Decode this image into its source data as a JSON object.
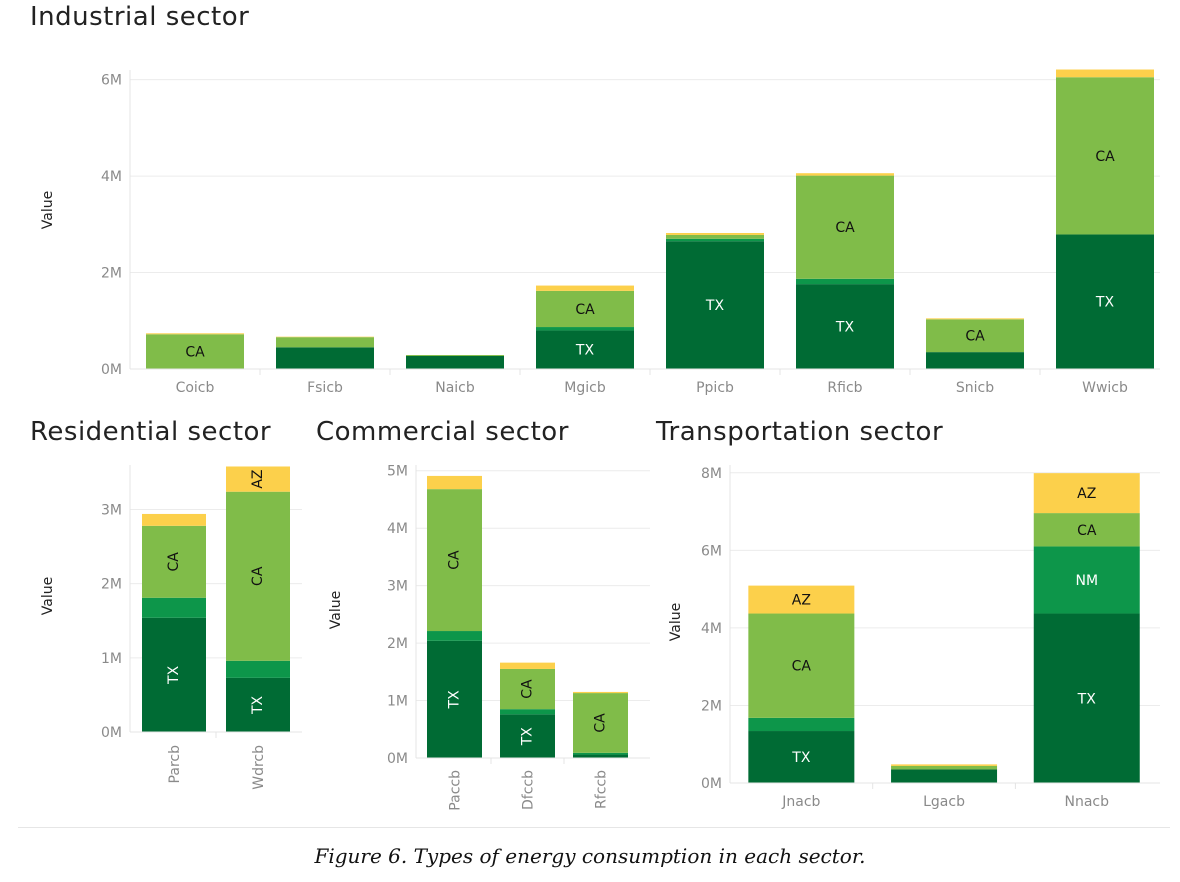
{
  "colors": {
    "TX": "#006b34",
    "NM": "#0d964a",
    "CA": "#80bc49",
    "AZ": "#fcd04b",
    "grid": "#ececec",
    "axis": "#e4e4e4"
  },
  "caption": "Figure 6. Types of energy consumption in each sector.",
  "chart_data": [
    {
      "type": "bar",
      "stacked": true,
      "title": "Industrial sector",
      "ylabel": "Value",
      "ylim": [
        0,
        6200000
      ],
      "y_ticks": [
        {
          "value": 0,
          "label": "0M"
        },
        {
          "value": 2000000,
          "label": "2M"
        },
        {
          "value": 4000000,
          "label": "4M"
        },
        {
          "value": 6000000,
          "label": "6M"
        }
      ],
      "categories": [
        "Coicb",
        "Fsicb",
        "Naicb",
        "Mgicb",
        "Ppicb",
        "Rficb",
        "Snicb",
        "Wwicb"
      ],
      "category_label_rotation": 0,
      "grid": true,
      "series": [
        {
          "key": "TX",
          "values": [
            0,
            450000,
            270000,
            800000,
            2650000,
            1760000,
            350000,
            2790000
          ]
        },
        {
          "key": "NM",
          "values": [
            0,
            0,
            0,
            70000,
            50000,
            110000,
            0,
            0
          ]
        },
        {
          "key": "CA",
          "values": [
            720000,
            210000,
            20000,
            750000,
            80000,
            2140000,
            680000,
            3260000
          ]
        },
        {
          "key": "AZ",
          "values": [
            20000,
            10000,
            0,
            110000,
            40000,
            50000,
            20000,
            160000
          ]
        }
      ],
      "segment_labels": [
        {
          "category": "Coicb",
          "key": "CA",
          "text": "CA"
        },
        {
          "category": "Mgicb",
          "key": "CA",
          "text": "CA"
        },
        {
          "category": "Mgicb",
          "key": "TX",
          "text": "TX"
        },
        {
          "category": "Ppicb",
          "key": "TX",
          "text": "TX"
        },
        {
          "category": "Rficb",
          "key": "CA",
          "text": "CA"
        },
        {
          "category": "Rficb",
          "key": "TX",
          "text": "TX"
        },
        {
          "category": "Snicb",
          "key": "CA",
          "text": "CA"
        },
        {
          "category": "Wwicb",
          "key": "CA",
          "text": "CA"
        },
        {
          "category": "Wwicb",
          "key": "TX",
          "text": "TX"
        }
      ]
    },
    {
      "type": "bar",
      "stacked": true,
      "title": "Residential sector",
      "ylabel": "Value",
      "ylim": [
        0,
        3600000
      ],
      "y_ticks": [
        {
          "value": 0,
          "label": "0M"
        },
        {
          "value": 1000000,
          "label": "1M"
        },
        {
          "value": 2000000,
          "label": "2M"
        },
        {
          "value": 3000000,
          "label": "3M"
        }
      ],
      "categories": [
        "Parcb",
        "Wdrcb"
      ],
      "category_label_rotation": -90,
      "grid": true,
      "series": [
        {
          "key": "TX",
          "values": [
            1540000,
            730000
          ]
        },
        {
          "key": "NM",
          "values": [
            270000,
            230000
          ]
        },
        {
          "key": "CA",
          "values": [
            970000,
            2280000
          ]
        },
        {
          "key": "AZ",
          "values": [
            160000,
            340000
          ]
        }
      ],
      "segment_labels": [
        {
          "category": "Parcb",
          "key": "TX",
          "text": "TX",
          "rotate": -90
        },
        {
          "category": "Parcb",
          "key": "CA",
          "text": "CA",
          "rotate": -90
        },
        {
          "category": "Wdrcb",
          "key": "TX",
          "text": "TX",
          "rotate": -90
        },
        {
          "category": "Wdrcb",
          "key": "CA",
          "text": "CA",
          "rotate": -90
        },
        {
          "category": "Wdrcb",
          "key": "AZ",
          "text": "AZ",
          "rotate": -90
        }
      ]
    },
    {
      "type": "bar",
      "stacked": true,
      "title": "Commercial sector",
      "ylabel": "Value",
      "ylim": [
        0,
        5100000
      ],
      "y_ticks": [
        {
          "value": 0,
          "label": "0M"
        },
        {
          "value": 1000000,
          "label": "1M"
        },
        {
          "value": 2000000,
          "label": "2M"
        },
        {
          "value": 3000000,
          "label": "3M"
        },
        {
          "value": 4000000,
          "label": "4M"
        },
        {
          "value": 5000000,
          "label": "5M"
        }
      ],
      "categories": [
        "Paccb",
        "Dfccb",
        "Rfccb"
      ],
      "category_label_rotation": -90,
      "grid": true,
      "series": [
        {
          "key": "TX",
          "values": [
            2040000,
            760000,
            60000
          ]
        },
        {
          "key": "NM",
          "values": [
            170000,
            90000,
            30000
          ]
        },
        {
          "key": "CA",
          "values": [
            2470000,
            700000,
            1040000
          ]
        },
        {
          "key": "AZ",
          "values": [
            230000,
            110000,
            20000
          ]
        }
      ],
      "segment_labels": [
        {
          "category": "Paccb",
          "key": "TX",
          "text": "TX",
          "rotate": -90
        },
        {
          "category": "Paccb",
          "key": "CA",
          "text": "CA",
          "rotate": -90
        },
        {
          "category": "Dfccb",
          "key": "TX",
          "text": "TX",
          "rotate": -90
        },
        {
          "category": "Dfccb",
          "key": "CA",
          "text": "CA",
          "rotate": -90
        },
        {
          "category": "Rfccb",
          "key": "CA",
          "text": "CA",
          "rotate": -90
        }
      ]
    },
    {
      "type": "bar",
      "stacked": true,
      "title": "Transportation sector",
      "ylabel": "Value",
      "ylim": [
        0,
        8200000
      ],
      "y_ticks": [
        {
          "value": 0,
          "label": "0M"
        },
        {
          "value": 2000000,
          "label": "2M"
        },
        {
          "value": 4000000,
          "label": "4M"
        },
        {
          "value": 6000000,
          "label": "6M"
        },
        {
          "value": 8000000,
          "label": "8M"
        }
      ],
      "categories": [
        "Jnacb",
        "Lgacb",
        "Nnacb"
      ],
      "category_label_rotation": 0,
      "grid": true,
      "series": [
        {
          "key": "TX",
          "values": [
            1340000,
            350000,
            4370000
          ]
        },
        {
          "key": "NM",
          "values": [
            340000,
            0,
            1730000
          ]
        },
        {
          "key": "CA",
          "values": [
            2690000,
            90000,
            860000
          ]
        },
        {
          "key": "AZ",
          "values": [
            720000,
            40000,
            1030000
          ]
        }
      ],
      "segment_labels": [
        {
          "category": "Jnacb",
          "key": "TX",
          "text": "TX"
        },
        {
          "category": "Jnacb",
          "key": "CA",
          "text": "CA"
        },
        {
          "category": "Jnacb",
          "key": "AZ",
          "text": "AZ"
        },
        {
          "category": "Nnacb",
          "key": "TX",
          "text": "TX"
        },
        {
          "category": "Nnacb",
          "key": "NM",
          "text": "NM"
        },
        {
          "category": "Nnacb",
          "key": "CA",
          "text": "CA"
        },
        {
          "category": "Nnacb",
          "key": "AZ",
          "text": "AZ"
        }
      ]
    }
  ]
}
